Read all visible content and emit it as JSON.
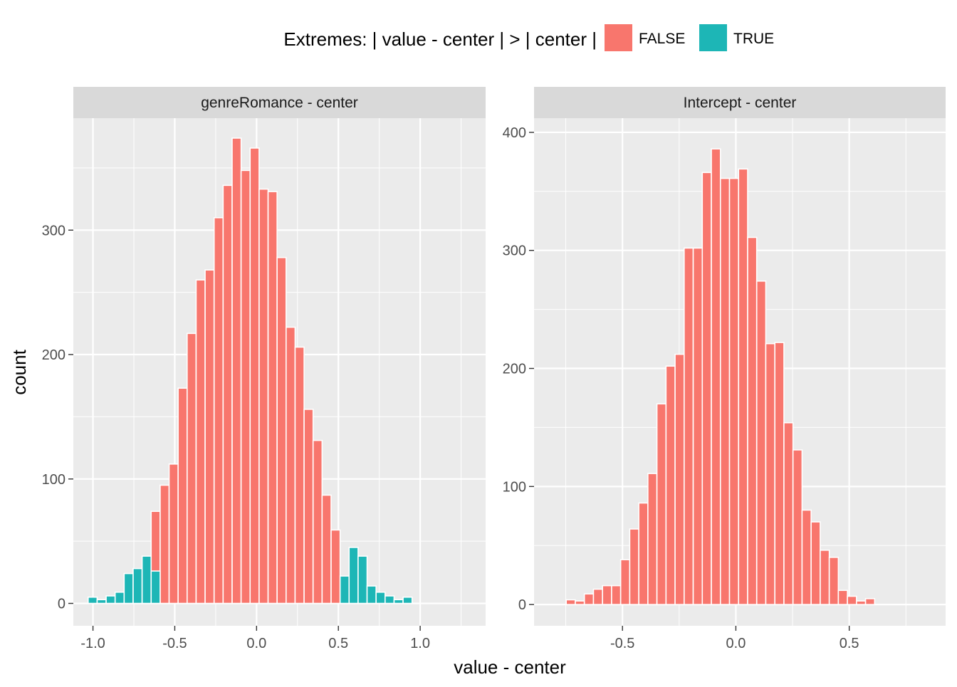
{
  "colors": {
    "false": "#F8766D",
    "true": "#1DB6B6",
    "panel_bg": "#EBEBEB",
    "strip_bg": "#D9D9D9",
    "grid": "#FFFFFF",
    "bar_outline": "#FFFFFF"
  },
  "legend": {
    "title": "Extremes: | value - center | > | center |",
    "items": [
      {
        "label": "FALSE",
        "color_key": "false"
      },
      {
        "label": "TRUE",
        "color_key": "true"
      }
    ]
  },
  "axis_titles": {
    "x": "value - center",
    "y": "count"
  },
  "chart_data": [
    {
      "type": "bar",
      "title": "genreRomance  - center",
      "xlabel": "value - center",
      "ylabel": "count",
      "grid": true,
      "bin_width": 0.055,
      "xlim": [
        -1.12,
        1.4
      ],
      "ylim": [
        -18,
        390
      ],
      "x_ticks": [
        -1.0,
        -0.5,
        0.0,
        0.5,
        1.0
      ],
      "x_tick_labels": [
        "-1.0",
        "-0.5",
        "0.0",
        "0.5",
        "1.0"
      ],
      "y_ticks": [
        0,
        100,
        200,
        300
      ],
      "y_tick_labels": [
        "0",
        "100",
        "200",
        "300"
      ],
      "bins": [
        {
          "x": -1.002,
          "count": 5,
          "extreme": true
        },
        {
          "x": -0.947,
          "count": 3,
          "extreme": true
        },
        {
          "x": -0.892,
          "count": 6,
          "extreme": true
        },
        {
          "x": -0.837,
          "count": 9,
          "extreme": true
        },
        {
          "x": -0.782,
          "count": 24,
          "extreme": true
        },
        {
          "x": -0.727,
          "count": 28,
          "extreme": true
        },
        {
          "x": -0.672,
          "count": 38,
          "extreme": true
        },
        {
          "x": -0.617,
          "count": 26,
          "extreme": true
        },
        {
          "x": -0.617,
          "count": 74,
          "extreme": false
        },
        {
          "x": -0.562,
          "count": 95,
          "extreme": false
        },
        {
          "x": -0.507,
          "count": 112,
          "extreme": false
        },
        {
          "x": -0.452,
          "count": 173,
          "extreme": false
        },
        {
          "x": -0.397,
          "count": 217,
          "extreme": false
        },
        {
          "x": -0.342,
          "count": 260,
          "extreme": false
        },
        {
          "x": -0.287,
          "count": 268,
          "extreme": false
        },
        {
          "x": -0.232,
          "count": 310,
          "extreme": false
        },
        {
          "x": -0.177,
          "count": 336,
          "extreme": false
        },
        {
          "x": -0.122,
          "count": 374,
          "extreme": false
        },
        {
          "x": -0.067,
          "count": 348,
          "extreme": false
        },
        {
          "x": -0.012,
          "count": 366,
          "extreme": false
        },
        {
          "x": 0.043,
          "count": 333,
          "extreme": false
        },
        {
          "x": 0.098,
          "count": 331,
          "extreme": false
        },
        {
          "x": 0.153,
          "count": 278,
          "extreme": false
        },
        {
          "x": 0.208,
          "count": 222,
          "extreme": false
        },
        {
          "x": 0.263,
          "count": 206,
          "extreme": false
        },
        {
          "x": 0.318,
          "count": 156,
          "extreme": false
        },
        {
          "x": 0.373,
          "count": 131,
          "extreme": false
        },
        {
          "x": 0.428,
          "count": 87,
          "extreme": false
        },
        {
          "x": 0.483,
          "count": 59,
          "extreme": false
        },
        {
          "x": 0.538,
          "count": 22,
          "extreme": true
        },
        {
          "x": 0.593,
          "count": 45,
          "extreme": true
        },
        {
          "x": 0.648,
          "count": 38,
          "extreme": true
        },
        {
          "x": 0.703,
          "count": 14,
          "extreme": true
        },
        {
          "x": 0.758,
          "count": 9,
          "extreme": true
        },
        {
          "x": 0.813,
          "count": 6,
          "extreme": true
        },
        {
          "x": 0.868,
          "count": 3,
          "extreme": true
        },
        {
          "x": 0.923,
          "count": 5,
          "extreme": true
        }
      ]
    },
    {
      "type": "bar",
      "title": "Intercept  - center",
      "xlabel": "value - center",
      "ylabel": "count",
      "grid": true,
      "bin_width": 0.04,
      "xlim": [
        -0.89,
        0.925
      ],
      "ylim": [
        -18,
        412
      ],
      "x_ticks": [
        -0.5,
        0.0,
        0.5
      ],
      "x_tick_labels": [
        "-0.5",
        "0.0",
        "0.5"
      ],
      "y_ticks": [
        0,
        100,
        200,
        300,
        400
      ],
      "y_tick_labels": [
        "0",
        "100",
        "200",
        "300",
        "400"
      ],
      "bins": [
        {
          "x": -0.728,
          "count": 4,
          "extreme": false
        },
        {
          "x": -0.688,
          "count": 3,
          "extreme": false
        },
        {
          "x": -0.648,
          "count": 9,
          "extreme": false
        },
        {
          "x": -0.608,
          "count": 13,
          "extreme": false
        },
        {
          "x": -0.568,
          "count": 16,
          "extreme": false
        },
        {
          "x": -0.528,
          "count": 16,
          "extreme": false
        },
        {
          "x": -0.488,
          "count": 38,
          "extreme": false
        },
        {
          "x": -0.448,
          "count": 64,
          "extreme": false
        },
        {
          "x": -0.408,
          "count": 86,
          "extreme": false
        },
        {
          "x": -0.368,
          "count": 111,
          "extreme": false
        },
        {
          "x": -0.328,
          "count": 170,
          "extreme": false
        },
        {
          "x": -0.288,
          "count": 202,
          "extreme": false
        },
        {
          "x": -0.248,
          "count": 212,
          "extreme": false
        },
        {
          "x": -0.208,
          "count": 302,
          "extreme": false
        },
        {
          "x": -0.168,
          "count": 302,
          "extreme": false
        },
        {
          "x": -0.128,
          "count": 366,
          "extreme": false
        },
        {
          "x": -0.088,
          "count": 386,
          "extreme": false
        },
        {
          "x": -0.048,
          "count": 361,
          "extreme": false
        },
        {
          "x": -0.008,
          "count": 361,
          "extreme": false
        },
        {
          "x": 0.032,
          "count": 369,
          "extreme": false
        },
        {
          "x": 0.072,
          "count": 311,
          "extreme": false
        },
        {
          "x": 0.112,
          "count": 274,
          "extreme": false
        },
        {
          "x": 0.152,
          "count": 221,
          "extreme": false
        },
        {
          "x": 0.192,
          "count": 222,
          "extreme": false
        },
        {
          "x": 0.232,
          "count": 154,
          "extreme": false
        },
        {
          "x": 0.272,
          "count": 131,
          "extreme": false
        },
        {
          "x": 0.312,
          "count": 80,
          "extreme": false
        },
        {
          "x": 0.352,
          "count": 70,
          "extreme": false
        },
        {
          "x": 0.392,
          "count": 46,
          "extreme": false
        },
        {
          "x": 0.432,
          "count": 40,
          "extreme": false
        },
        {
          "x": 0.472,
          "count": 12,
          "extreme": false
        },
        {
          "x": 0.512,
          "count": 7,
          "extreme": false
        },
        {
          "x": 0.552,
          "count": 3,
          "extreme": false
        },
        {
          "x": 0.592,
          "count": 5,
          "extreme": false
        }
      ]
    }
  ]
}
